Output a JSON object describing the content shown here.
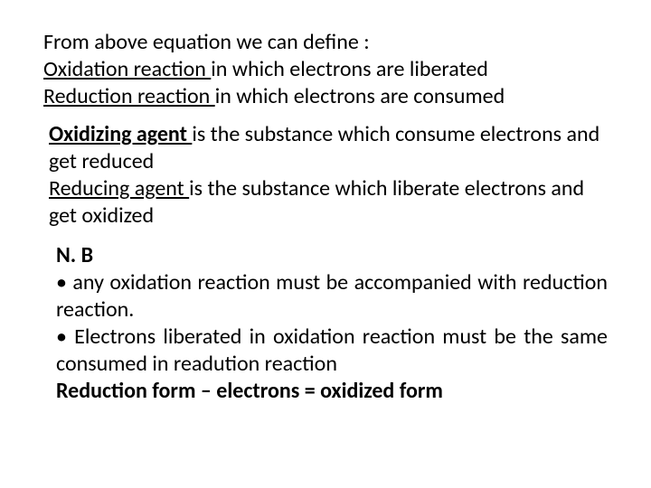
{
  "block1": {
    "intro": "From above equation we can define :",
    "oxidation_term": "Oxidation  reaction ",
    "oxidation_rest": "in which electrons are liberated",
    "reduction_term": "Reduction  reaction ",
    "reduction_rest": "in which electrons are consumed"
  },
  "block2": {
    "oxidizing_term": "Oxidizing agent ",
    "oxidizing_rest": "is the substance which consume electrons and get reduced",
    "reducing_term": "Reducing agent ",
    "reducing_rest": "is the substance which liberate electrons and get oxidized"
  },
  "block3": {
    "nb": "N. B",
    "bullet1": "• any oxidation reaction must be accompanied with reduction reaction.",
    "bullet2": "• Electrons liberated in oxidation reaction must be the same consumed in readution reaction",
    "equation": "Reduction form – electrons  = oxidized form"
  },
  "style": {
    "font_family": "Calibri, Arial, sans-serif",
    "font_size_pt": 18,
    "text_color": "#000000",
    "background_color": "#ffffff"
  }
}
